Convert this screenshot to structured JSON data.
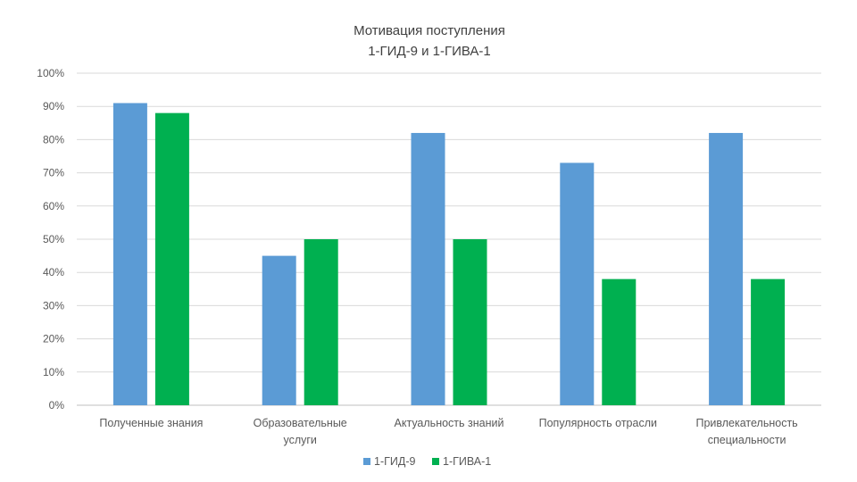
{
  "chart_data": {
    "type": "bar",
    "title": [
      "Мотивация поступления",
      "1-ГИД-9 и 1-ГИВА-1"
    ],
    "categories": [
      [
        "Полученные знания"
      ],
      [
        "Образовательные",
        "услуги"
      ],
      [
        "Актуальность знаний"
      ],
      [
        "Популярность отрасли"
      ],
      [
        "Привлекательность",
        "специальности"
      ]
    ],
    "series": [
      {
        "name": "1-ГИД-9",
        "color": "#5b9bd5",
        "values": [
          91,
          45,
          82,
          73,
          82
        ]
      },
      {
        "name": "1-ГИВА-1",
        "color": "#00b050",
        "values": [
          88,
          50,
          50,
          38,
          38
        ]
      }
    ],
    "ylim": [
      0,
      100
    ],
    "yticks": [
      "0%",
      "10%",
      "20%",
      "30%",
      "40%",
      "50%",
      "60%",
      "70%",
      "80%",
      "90%",
      "100%"
    ],
    "grid": true,
    "legend_position": "bottom"
  }
}
